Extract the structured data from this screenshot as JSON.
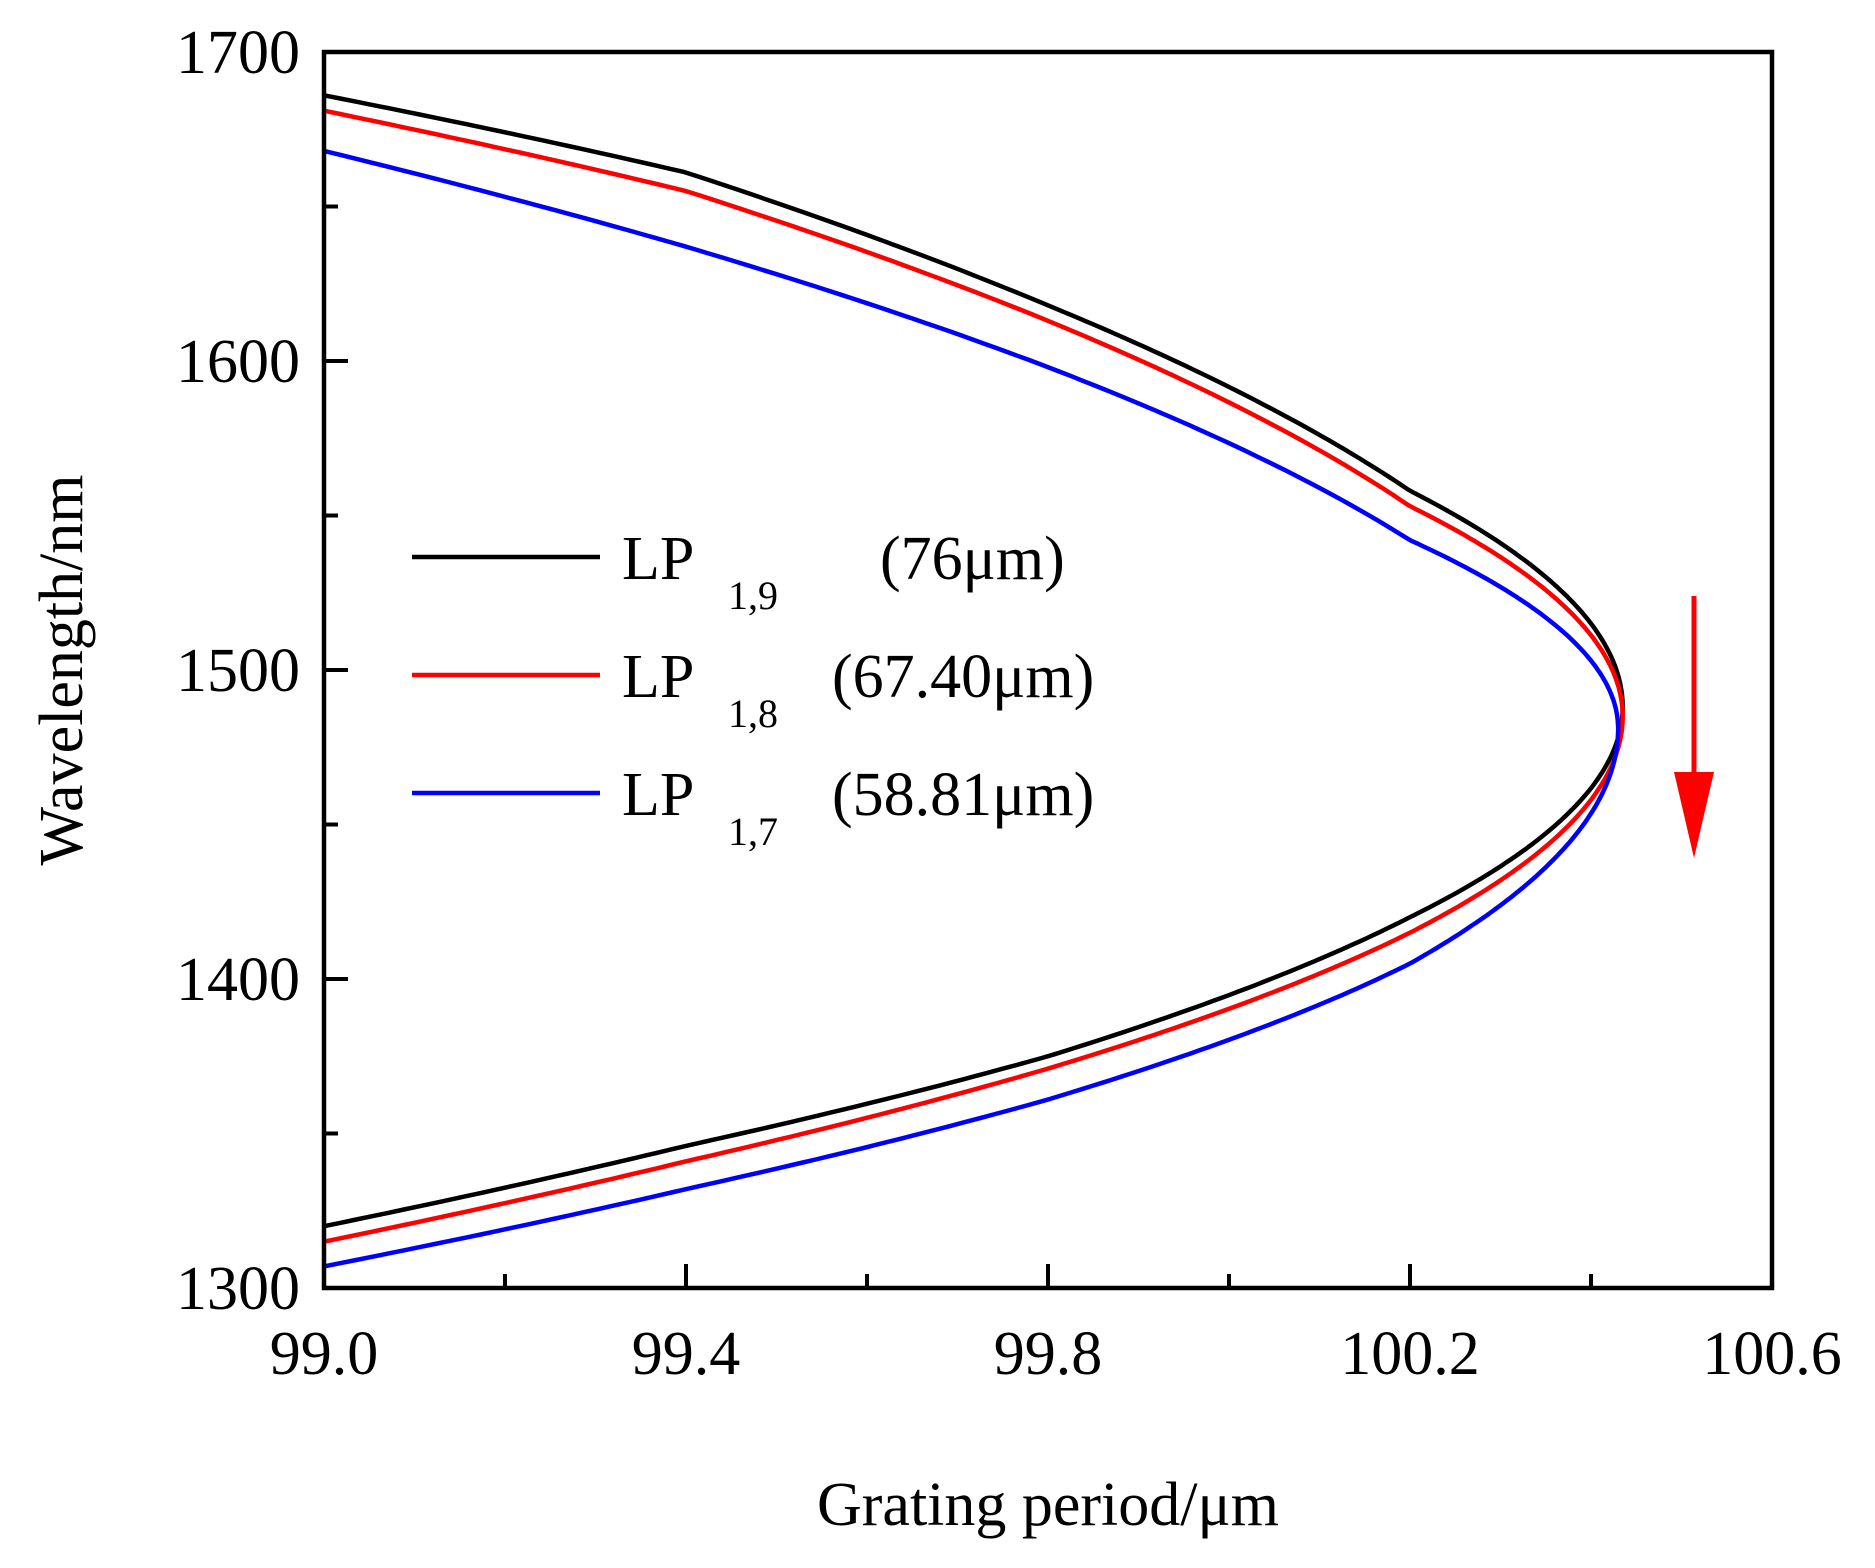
{
  "chart_data": {
    "type": "line",
    "xlabel": "Grating period/μm",
    "ylabel": "Wavelength/nm",
    "xlim": [
      99.0,
      100.6
    ],
    "ylim": [
      1300,
      1700
    ],
    "xticks": [
      99.0,
      99.4,
      99.8,
      100.2,
      100.6
    ],
    "xtick_labels": [
      "99.0",
      "99.4",
      "99.8",
      "100.2",
      "100.6"
    ],
    "yticks": [
      1300,
      1400,
      1500,
      1600,
      1700
    ],
    "ytick_labels": [
      "1300",
      "1400",
      "1500",
      "1600",
      "1700"
    ],
    "x_minor_step": 0.2,
    "y_minor_step": 50,
    "legend_position": "center-left",
    "annotation": {
      "type": "arrow",
      "direction": "down",
      "color": "#ff0000"
    },
    "series": [
      {
        "name": "LP1,9 (76μm)",
        "label_base": "LP",
        "label_sub": "1,9",
        "label_note": "(76μm)",
        "color": "#000000",
        "turning_point": {
          "x": 100.435,
          "y": 1488
        },
        "upper_branch": [
          [
            99.0,
            1686
          ],
          [
            99.4,
            1661
          ],
          [
            99.8,
            1618
          ],
          [
            100.2,
            1558
          ],
          [
            100.435,
            1488
          ]
        ],
        "lower_branch": [
          [
            99.0,
            1320
          ],
          [
            99.4,
            1346
          ],
          [
            99.8,
            1375
          ],
          [
            100.2,
            1420
          ],
          [
            100.435,
            1488
          ]
        ]
      },
      {
        "name": "LP1,8 (67.40μm)",
        "label_base": "LP",
        "label_sub": "1,8",
        "label_note": "(67.40μm)",
        "color": "#ff0000",
        "turning_point": {
          "x": 100.435,
          "y": 1485
        },
        "upper_branch": [
          [
            99.0,
            1681
          ],
          [
            99.4,
            1655
          ],
          [
            99.8,
            1613
          ],
          [
            100.2,
            1553
          ],
          [
            100.435,
            1485
          ]
        ],
        "lower_branch": [
          [
            99.0,
            1315
          ],
          [
            99.4,
            1341
          ],
          [
            99.8,
            1371
          ],
          [
            100.2,
            1415
          ],
          [
            100.435,
            1485
          ]
        ]
      },
      {
        "name": "LP1,7 (58.81μm)",
        "label_base": "LP",
        "label_sub": "1,7",
        "label_note": "(58.81μm)",
        "color": "#0000ff",
        "turning_point": {
          "x": 100.43,
          "y": 1481
        },
        "upper_branch": [
          [
            99.0,
            1668
          ],
          [
            99.4,
            1637
          ],
          [
            99.8,
            1598
          ],
          [
            100.2,
            1542
          ],
          [
            100.43,
            1481
          ]
        ],
        "lower_branch": [
          [
            99.0,
            1307
          ],
          [
            99.4,
            1332
          ],
          [
            99.8,
            1361
          ],
          [
            100.2,
            1405
          ],
          [
            100.43,
            1481
          ]
        ]
      }
    ]
  }
}
